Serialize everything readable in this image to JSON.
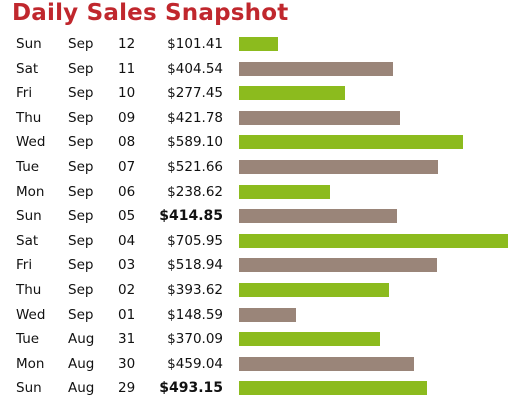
{
  "title": "Daily Sales Snapshot",
  "colors": {
    "title": "#c0272d",
    "bar_green": "#8cbb1e",
    "bar_taupe": "#9a8579"
  },
  "chart_data": {
    "type": "bar",
    "orientation": "horizontal",
    "title": "Daily Sales Snapshot",
    "xlim": [
      0,
      705.95
    ],
    "grid": false,
    "rows": [
      {
        "day": "Sun",
        "month": "Sep",
        "date": "12",
        "amount": "$101.41",
        "value": 101.41,
        "color": "green",
        "bold": false
      },
      {
        "day": "Sat",
        "month": "Sep",
        "date": "11",
        "amount": "$404.54",
        "value": 404.54,
        "color": "taupe",
        "bold": false
      },
      {
        "day": "Fri",
        "month": "Sep",
        "date": "10",
        "amount": "$277.45",
        "value": 277.45,
        "color": "green",
        "bold": false
      },
      {
        "day": "Thu",
        "month": "Sep",
        "date": "09",
        "amount": "$421.78",
        "value": 421.78,
        "color": "taupe",
        "bold": false
      },
      {
        "day": "Wed",
        "month": "Sep",
        "date": "08",
        "amount": "$589.10",
        "value": 589.1,
        "color": "green",
        "bold": false
      },
      {
        "day": "Tue",
        "month": "Sep",
        "date": "07",
        "amount": "$521.66",
        "value": 521.66,
        "color": "taupe",
        "bold": false
      },
      {
        "day": "Mon",
        "month": "Sep",
        "date": "06",
        "amount": "$238.62",
        "value": 238.62,
        "color": "green",
        "bold": false
      },
      {
        "day": "Sun",
        "month": "Sep",
        "date": "05",
        "amount": "$414.85",
        "value": 414.85,
        "color": "taupe",
        "bold": true
      },
      {
        "day": "Sat",
        "month": "Sep",
        "date": "04",
        "amount": "$705.95",
        "value": 705.95,
        "color": "green",
        "bold": false
      },
      {
        "day": "Fri",
        "month": "Sep",
        "date": "03",
        "amount": "$518.94",
        "value": 518.94,
        "color": "taupe",
        "bold": false
      },
      {
        "day": "Thu",
        "month": "Sep",
        "date": "02",
        "amount": "$393.62",
        "value": 393.62,
        "color": "green",
        "bold": false
      },
      {
        "day": "Wed",
        "month": "Sep",
        "date": "01",
        "amount": "$148.59",
        "value": 148.59,
        "color": "taupe",
        "bold": false
      },
      {
        "day": "Tue",
        "month": "Aug",
        "date": "31",
        "amount": "$370.09",
        "value": 370.09,
        "color": "green",
        "bold": false
      },
      {
        "day": "Mon",
        "month": "Aug",
        "date": "30",
        "amount": "$459.04",
        "value": 459.04,
        "color": "taupe",
        "bold": false
      },
      {
        "day": "Sun",
        "month": "Aug",
        "date": "29",
        "amount": "$493.15",
        "value": 493.15,
        "color": "green",
        "bold": true
      }
    ]
  }
}
